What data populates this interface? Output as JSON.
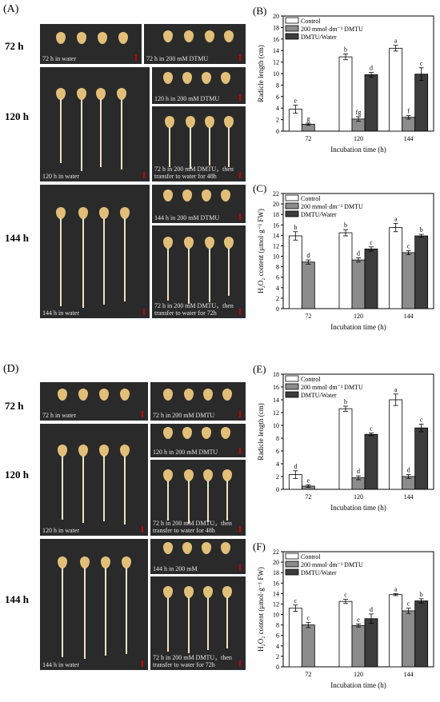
{
  "panels": {
    "A": "(A)",
    "B": "(B)",
    "C": "(C)",
    "D": "(D)",
    "E": "(E)",
    "F": "(F)"
  },
  "times": {
    "t72": "72 h",
    "t120": "120 h",
    "t144": "144 h"
  },
  "photos_top": {
    "p72w": "72 h in water",
    "p72d": "72 h in 200 mM DTMU",
    "p120w": "120 h in water",
    "p120d": "120 h in 200 mM DTMU",
    "p120t1": "72 h in 200 mM DMTU，then",
    "p120t2": "transfer to water for 48h",
    "p144w": "144 h in water",
    "p144d": "144 h in 200 mM DTMU",
    "p144t1": "72 h in 200 mM DMTU，then",
    "p144t2": "transfer to water for 72h"
  },
  "photos_bottom": {
    "p72w": "72 h in water",
    "p72d": "72 h in 200 mM DMTU",
    "p120w": "120 h in water",
    "p120d": "120 h in 200 mM DMTU",
    "p120t1": "72 h in 200 mM DMTU，then",
    "p120t2": "transfer to water for 48h",
    "p144w": "144 h in water",
    "p144d": "144 h in 200 mM",
    "p144t1": "72 h in 200 mM DMTU，then",
    "p144t2": "transfer to water for 72h"
  },
  "colors": {
    "control": "#ffffff",
    "dmtu": "#8c8c8c",
    "dmtu_water": "#3c3c3c"
  },
  "chart_data": [
    {
      "panel": "B",
      "type": "bar",
      "categories": [
        "72",
        "120",
        "144"
      ],
      "xlabel": "Incubation time (h)",
      "ylabel": "Radicle length (cm)",
      "ylim": [
        0,
        20
      ],
      "yticks": [
        0,
        2,
        4,
        6,
        8,
        10,
        12,
        14,
        16,
        18,
        20
      ],
      "legend": "top-left",
      "series": [
        {
          "name": "Control",
          "color": "#ffffff",
          "values": [
            3.8,
            12.9,
            14.4
          ],
          "errors": [
            0.7,
            0.5,
            0.5
          ],
          "letters": [
            "e",
            "b",
            "a"
          ]
        },
        {
          "name": "200 mmol·dm⁻³ DMTU",
          "color": "#8c8c8c",
          "values": [
            1.2,
            2.1,
            2.4
          ],
          "errors": [
            0.2,
            0.4,
            0.3
          ],
          "letters": [
            "g",
            "fg",
            "f"
          ]
        },
        {
          "name": "DMTU/Water",
          "color": "#3c3c3c",
          "values": [
            null,
            9.8,
            9.9
          ],
          "errors": [
            null,
            0.4,
            1.1
          ],
          "letters": [
            null,
            "d",
            "c"
          ]
        }
      ]
    },
    {
      "panel": "C",
      "type": "bar",
      "categories": [
        "72",
        "120",
        "144"
      ],
      "xlabel": "Incubation time (h)",
      "ylabel": "H₂O₂ content (μmol·g⁻¹ FW)",
      "ylim": [
        0,
        22
      ],
      "yticks": [
        0,
        2,
        4,
        6,
        8,
        10,
        12,
        14,
        16,
        18,
        20,
        22
      ],
      "legend": "top-left",
      "series": [
        {
          "name": "Control",
          "color": "#ffffff",
          "values": [
            13.9,
            14.5,
            15.5
          ],
          "errors": [
            0.8,
            0.6,
            0.8
          ],
          "letters": [
            "b",
            "b",
            "a"
          ]
        },
        {
          "name": "200 mmol·dm⁻³ DMTU",
          "color": "#8c8c8c",
          "values": [
            8.9,
            9.3,
            10.7
          ],
          "errors": [
            0.4,
            0.4,
            0.4
          ],
          "letters": [
            "d",
            "d",
            "c"
          ]
        },
        {
          "name": "DMTU/Water",
          "color": "#3c3c3c",
          "values": [
            null,
            11.4,
            13.9
          ],
          "errors": [
            null,
            0.4,
            0.3
          ],
          "letters": [
            null,
            "c",
            "b"
          ]
        }
      ]
    },
    {
      "panel": "E",
      "type": "bar",
      "categories": [
        "72",
        "120",
        "144"
      ],
      "xlabel": "Incubation time (h)",
      "ylabel": "Radicle length (cm)",
      "ylim": [
        0,
        18
      ],
      "yticks": [
        0,
        2,
        4,
        6,
        8,
        10,
        12,
        14,
        16,
        18
      ],
      "legend": "top-left",
      "series": [
        {
          "name": "Control",
          "color": "#ffffff",
          "values": [
            2.3,
            12.6,
            14.0
          ],
          "errors": [
            0.6,
            0.4,
            0.9
          ],
          "letters": [
            "d",
            "b",
            "a"
          ]
        },
        {
          "name": "200 mmol·dm⁻³ DMTU",
          "color": "#8c8c8c",
          "values": [
            0.5,
            1.8,
            2.0
          ],
          "errors": [
            0.2,
            0.3,
            0.3
          ],
          "letters": [
            "e",
            "d",
            "d"
          ]
        },
        {
          "name": "DMTU/Water",
          "color": "#3c3c3c",
          "values": [
            null,
            8.6,
            9.6
          ],
          "errors": [
            null,
            0.2,
            0.6
          ],
          "letters": [
            null,
            "c",
            "c"
          ]
        }
      ]
    },
    {
      "panel": "F",
      "type": "bar",
      "categories": [
        "72",
        "120",
        "144"
      ],
      "xlabel": "Incubation time (h)",
      "ylabel": "H₂O₂ content (μmol·g⁻¹ FW)",
      "ylim": [
        0,
        22
      ],
      "yticks": [
        0,
        2,
        4,
        6,
        8,
        10,
        12,
        14,
        16,
        18,
        20,
        22
      ],
      "legend": "top-left",
      "series": [
        {
          "name": "Control",
          "color": "#ffffff",
          "values": [
            11.2,
            12.5,
            13.8
          ],
          "errors": [
            0.6,
            0.4,
            0.2
          ],
          "letters": [
            "c",
            "c",
            "a"
          ]
        },
        {
          "name": "200 mmol·dm⁻³ DMTU",
          "color": "#8c8c8c",
          "values": [
            8.0,
            7.9,
            10.7
          ],
          "errors": [
            0.5,
            0.3,
            0.5
          ],
          "letters": [
            "c",
            "e",
            "c"
          ]
        },
        {
          "name": "DMTU/Water",
          "color": "#3c3c3c",
          "values": [
            null,
            9.2,
            12.6
          ],
          "errors": [
            null,
            0.9,
            0.4
          ],
          "letters": [
            null,
            "d",
            "b"
          ]
        }
      ]
    }
  ]
}
